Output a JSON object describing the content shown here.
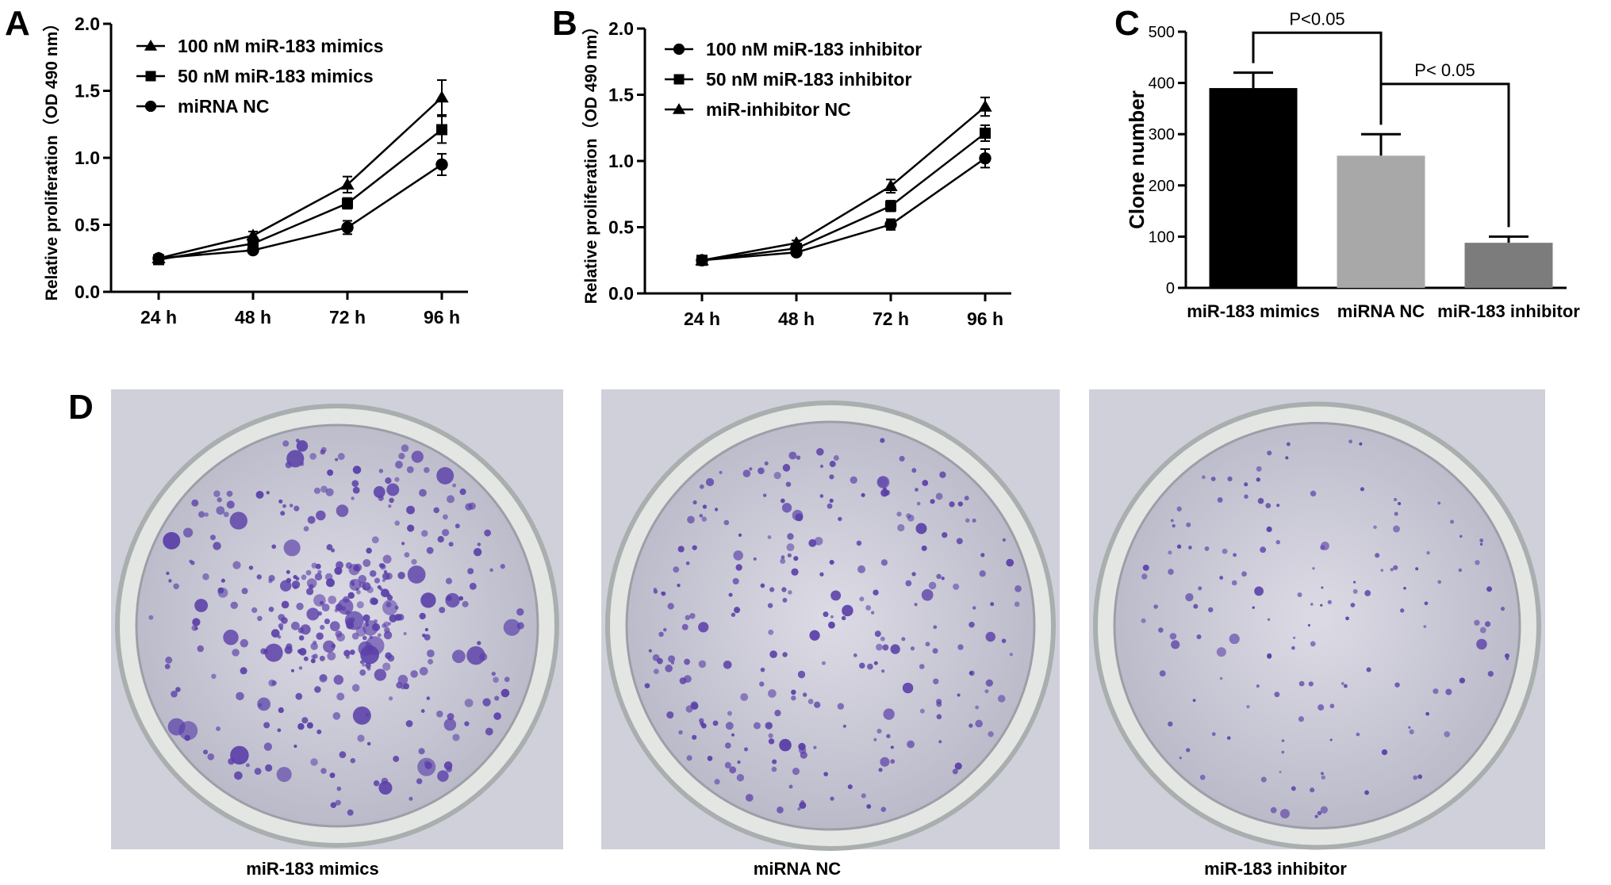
{
  "panels": {
    "a": "A",
    "b": "B",
    "c": "C",
    "d": "D"
  },
  "chart_data": [
    {
      "panel": "A",
      "type": "line",
      "x": [
        "24 h",
        "48 h",
        "72 h",
        "96 h"
      ],
      "ylabel": "Relative proliferation（OD 490 nm）",
      "ylim": [
        0,
        2.0
      ],
      "yticks": [
        "0.0",
        "0.5",
        "1.0",
        "1.5",
        "2.0"
      ],
      "legend_position": "top-left",
      "series": [
        {
          "name": "100 nM miR-183 mimics",
          "marker": "triangle",
          "values": [
            0.25,
            0.42,
            0.8,
            1.45
          ],
          "errors": [
            0.02,
            0.03,
            0.06,
            0.13
          ]
        },
        {
          "name": "50 nM miR-183 mimics",
          "marker": "square",
          "values": [
            0.24,
            0.36,
            0.66,
            1.21
          ],
          "errors": [
            0.02,
            0.02,
            0.04,
            0.1
          ]
        },
        {
          "name": "miRNA NC",
          "marker": "circle",
          "values": [
            0.25,
            0.31,
            0.48,
            0.95
          ],
          "errors": [
            0.02,
            0.02,
            0.05,
            0.08
          ]
        }
      ]
    },
    {
      "panel": "B",
      "type": "line",
      "x": [
        "24 h",
        "48 h",
        "72 h",
        "96 h"
      ],
      "ylabel": "Relative proliferation（OD 490 nm）",
      "ylim": [
        0,
        2.0
      ],
      "yticks": [
        "0.0",
        "0.5",
        "1.0",
        "1.5",
        "2.0"
      ],
      "legend_position": "top-left",
      "series": [
        {
          "name": "100 nM miR-183 inhibitor",
          "marker": "circle",
          "values": [
            0.25,
            0.31,
            0.52,
            1.02
          ],
          "errors": [
            0.02,
            0.02,
            0.04,
            0.07
          ]
        },
        {
          "name": "50 nM miR-183 inhibitor",
          "marker": "square",
          "values": [
            0.25,
            0.34,
            0.66,
            1.21
          ],
          "errors": [
            0.02,
            0.02,
            0.04,
            0.06
          ]
        },
        {
          "name": "miR-inhibitor NC",
          "marker": "triangle",
          "values": [
            0.25,
            0.38,
            0.81,
            1.41
          ],
          "errors": [
            0.02,
            0.02,
            0.05,
            0.07
          ]
        }
      ]
    },
    {
      "panel": "C",
      "type": "bar",
      "categories": [
        "miR-183 mimics",
        "miRNA NC",
        "miR-183 inhibitor"
      ],
      "values": [
        390,
        258,
        88
      ],
      "errors": [
        30,
        42,
        12
      ],
      "colors": [
        "#000000",
        "#a8a8a8",
        "#7c7c7c"
      ],
      "ylabel": "Clone number",
      "ylim": [
        0,
        500
      ],
      "yticks": [
        "0",
        "100",
        "200",
        "300",
        "400",
        "500"
      ],
      "annotations": [
        "P<0.05",
        "P< 0.05"
      ]
    }
  ],
  "plates": [
    {
      "caption": "miR-183 mimics",
      "colonies": "dense"
    },
    {
      "caption": "miRNA NC",
      "colonies": "medium"
    },
    {
      "caption": "miR-183 inhibitor",
      "colonies": "sparse"
    }
  ],
  "colors": {
    "stain": "#5a3fa8",
    "plate_bg": "#cfd0da",
    "dish": "#bfc4c6"
  }
}
